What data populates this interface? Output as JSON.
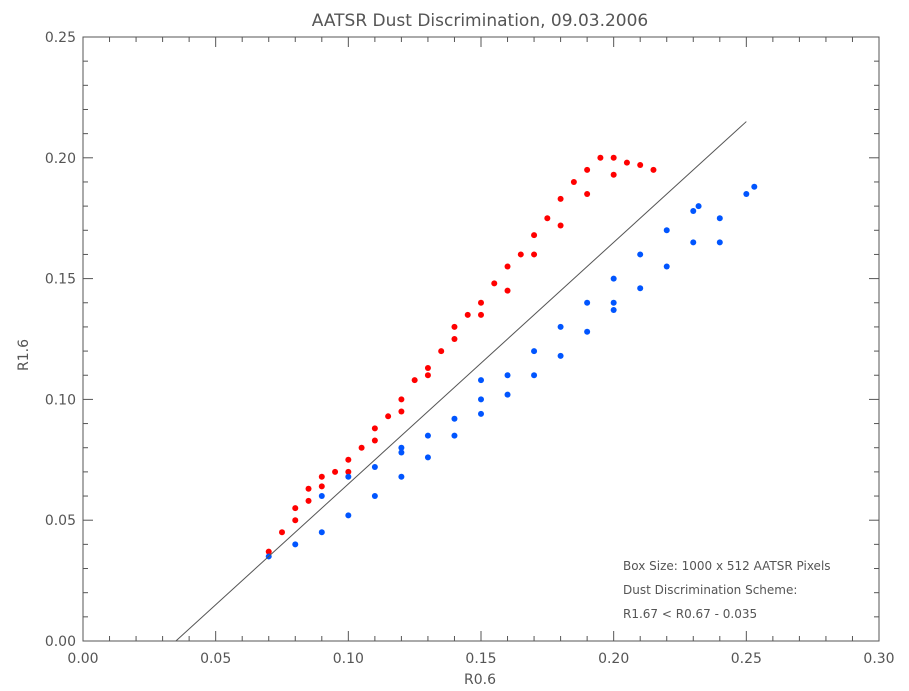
{
  "chart_data": {
    "type": "scatter",
    "title": "AATSR Dust Discrimination, 09.03.2006",
    "xlabel": "R0.6",
    "ylabel": "R1.6",
    "xlim": [
      0.0,
      0.3
    ],
    "ylim": [
      0.0,
      0.25
    ],
    "xticks": [
      0.0,
      0.05,
      0.1,
      0.15,
      0.2,
      0.25,
      0.3
    ],
    "yticks": [
      0.0,
      0.05,
      0.1,
      0.15,
      0.2,
      0.25
    ],
    "xtick_labels": [
      "0.00",
      "0.05",
      "0.10",
      "0.15",
      "0.20",
      "0.25",
      "0.30"
    ],
    "ytick_labels": [
      "0.00",
      "0.05",
      "0.10",
      "0.15",
      "0.20",
      "0.25"
    ],
    "grid": false,
    "series": [
      {
        "color": "#ff0000",
        "points": [
          [
            0.07,
            0.037
          ],
          [
            0.075,
            0.045
          ],
          [
            0.08,
            0.055
          ],
          [
            0.085,
            0.063
          ],
          [
            0.09,
            0.068
          ],
          [
            0.095,
            0.07
          ],
          [
            0.1,
            0.075
          ],
          [
            0.105,
            0.08
          ],
          [
            0.11,
            0.088
          ],
          [
            0.115,
            0.093
          ],
          [
            0.12,
            0.1
          ],
          [
            0.125,
            0.108
          ],
          [
            0.13,
            0.113
          ],
          [
            0.135,
            0.12
          ],
          [
            0.14,
            0.13
          ],
          [
            0.145,
            0.135
          ],
          [
            0.15,
            0.14
          ],
          [
            0.155,
            0.148
          ],
          [
            0.16,
            0.155
          ],
          [
            0.165,
            0.16
          ],
          [
            0.17,
            0.168
          ],
          [
            0.175,
            0.175
          ],
          [
            0.18,
            0.183
          ],
          [
            0.185,
            0.19
          ],
          [
            0.19,
            0.195
          ],
          [
            0.195,
            0.2
          ],
          [
            0.2,
            0.2
          ],
          [
            0.205,
            0.198
          ],
          [
            0.21,
            0.197
          ],
          [
            0.215,
            0.195
          ],
          [
            0.08,
            0.05
          ],
          [
            0.085,
            0.058
          ],
          [
            0.09,
            0.064
          ],
          [
            0.1,
            0.07
          ],
          [
            0.11,
            0.083
          ],
          [
            0.12,
            0.095
          ],
          [
            0.13,
            0.11
          ],
          [
            0.14,
            0.125
          ],
          [
            0.15,
            0.135
          ],
          [
            0.16,
            0.145
          ],
          [
            0.17,
            0.16
          ],
          [
            0.18,
            0.172
          ],
          [
            0.19,
            0.185
          ],
          [
            0.2,
            0.193
          ]
        ]
      },
      {
        "color": "#0055ff",
        "points": [
          [
            0.07,
            0.035
          ],
          [
            0.08,
            0.04
          ],
          [
            0.09,
            0.045
          ],
          [
            0.1,
            0.052
          ],
          [
            0.11,
            0.06
          ],
          [
            0.12,
            0.068
          ],
          [
            0.13,
            0.076
          ],
          [
            0.14,
            0.085
          ],
          [
            0.15,
            0.094
          ],
          [
            0.16,
            0.102
          ],
          [
            0.17,
            0.11
          ],
          [
            0.18,
            0.118
          ],
          [
            0.19,
            0.128
          ],
          [
            0.2,
            0.137
          ],
          [
            0.21,
            0.146
          ],
          [
            0.22,
            0.155
          ],
          [
            0.23,
            0.165
          ],
          [
            0.24,
            0.175
          ],
          [
            0.25,
            0.185
          ],
          [
            0.253,
            0.188
          ],
          [
            0.09,
            0.06
          ],
          [
            0.1,
            0.068
          ],
          [
            0.11,
            0.072
          ],
          [
            0.12,
            0.078
          ],
          [
            0.13,
            0.085
          ],
          [
            0.14,
            0.092
          ],
          [
            0.15,
            0.1
          ],
          [
            0.16,
            0.11
          ],
          [
            0.17,
            0.12
          ],
          [
            0.18,
            0.13
          ],
          [
            0.19,
            0.14
          ],
          [
            0.2,
            0.15
          ],
          [
            0.21,
            0.16
          ],
          [
            0.22,
            0.17
          ],
          [
            0.23,
            0.178
          ],
          [
            0.232,
            0.18
          ],
          [
            0.24,
            0.165
          ],
          [
            0.2,
            0.14
          ],
          [
            0.15,
            0.108
          ],
          [
            0.12,
            0.08
          ]
        ]
      }
    ],
    "reference_line": {
      "x": [
        0.035,
        0.25
      ],
      "y": [
        0.0,
        0.215
      ],
      "color": "#555555"
    },
    "annotations": [
      "Box Size: 1000 x 512 AATSR Pixels",
      "Dust Discrimination Scheme:",
      "R1.67 < R0.67 - 0.035"
    ]
  }
}
